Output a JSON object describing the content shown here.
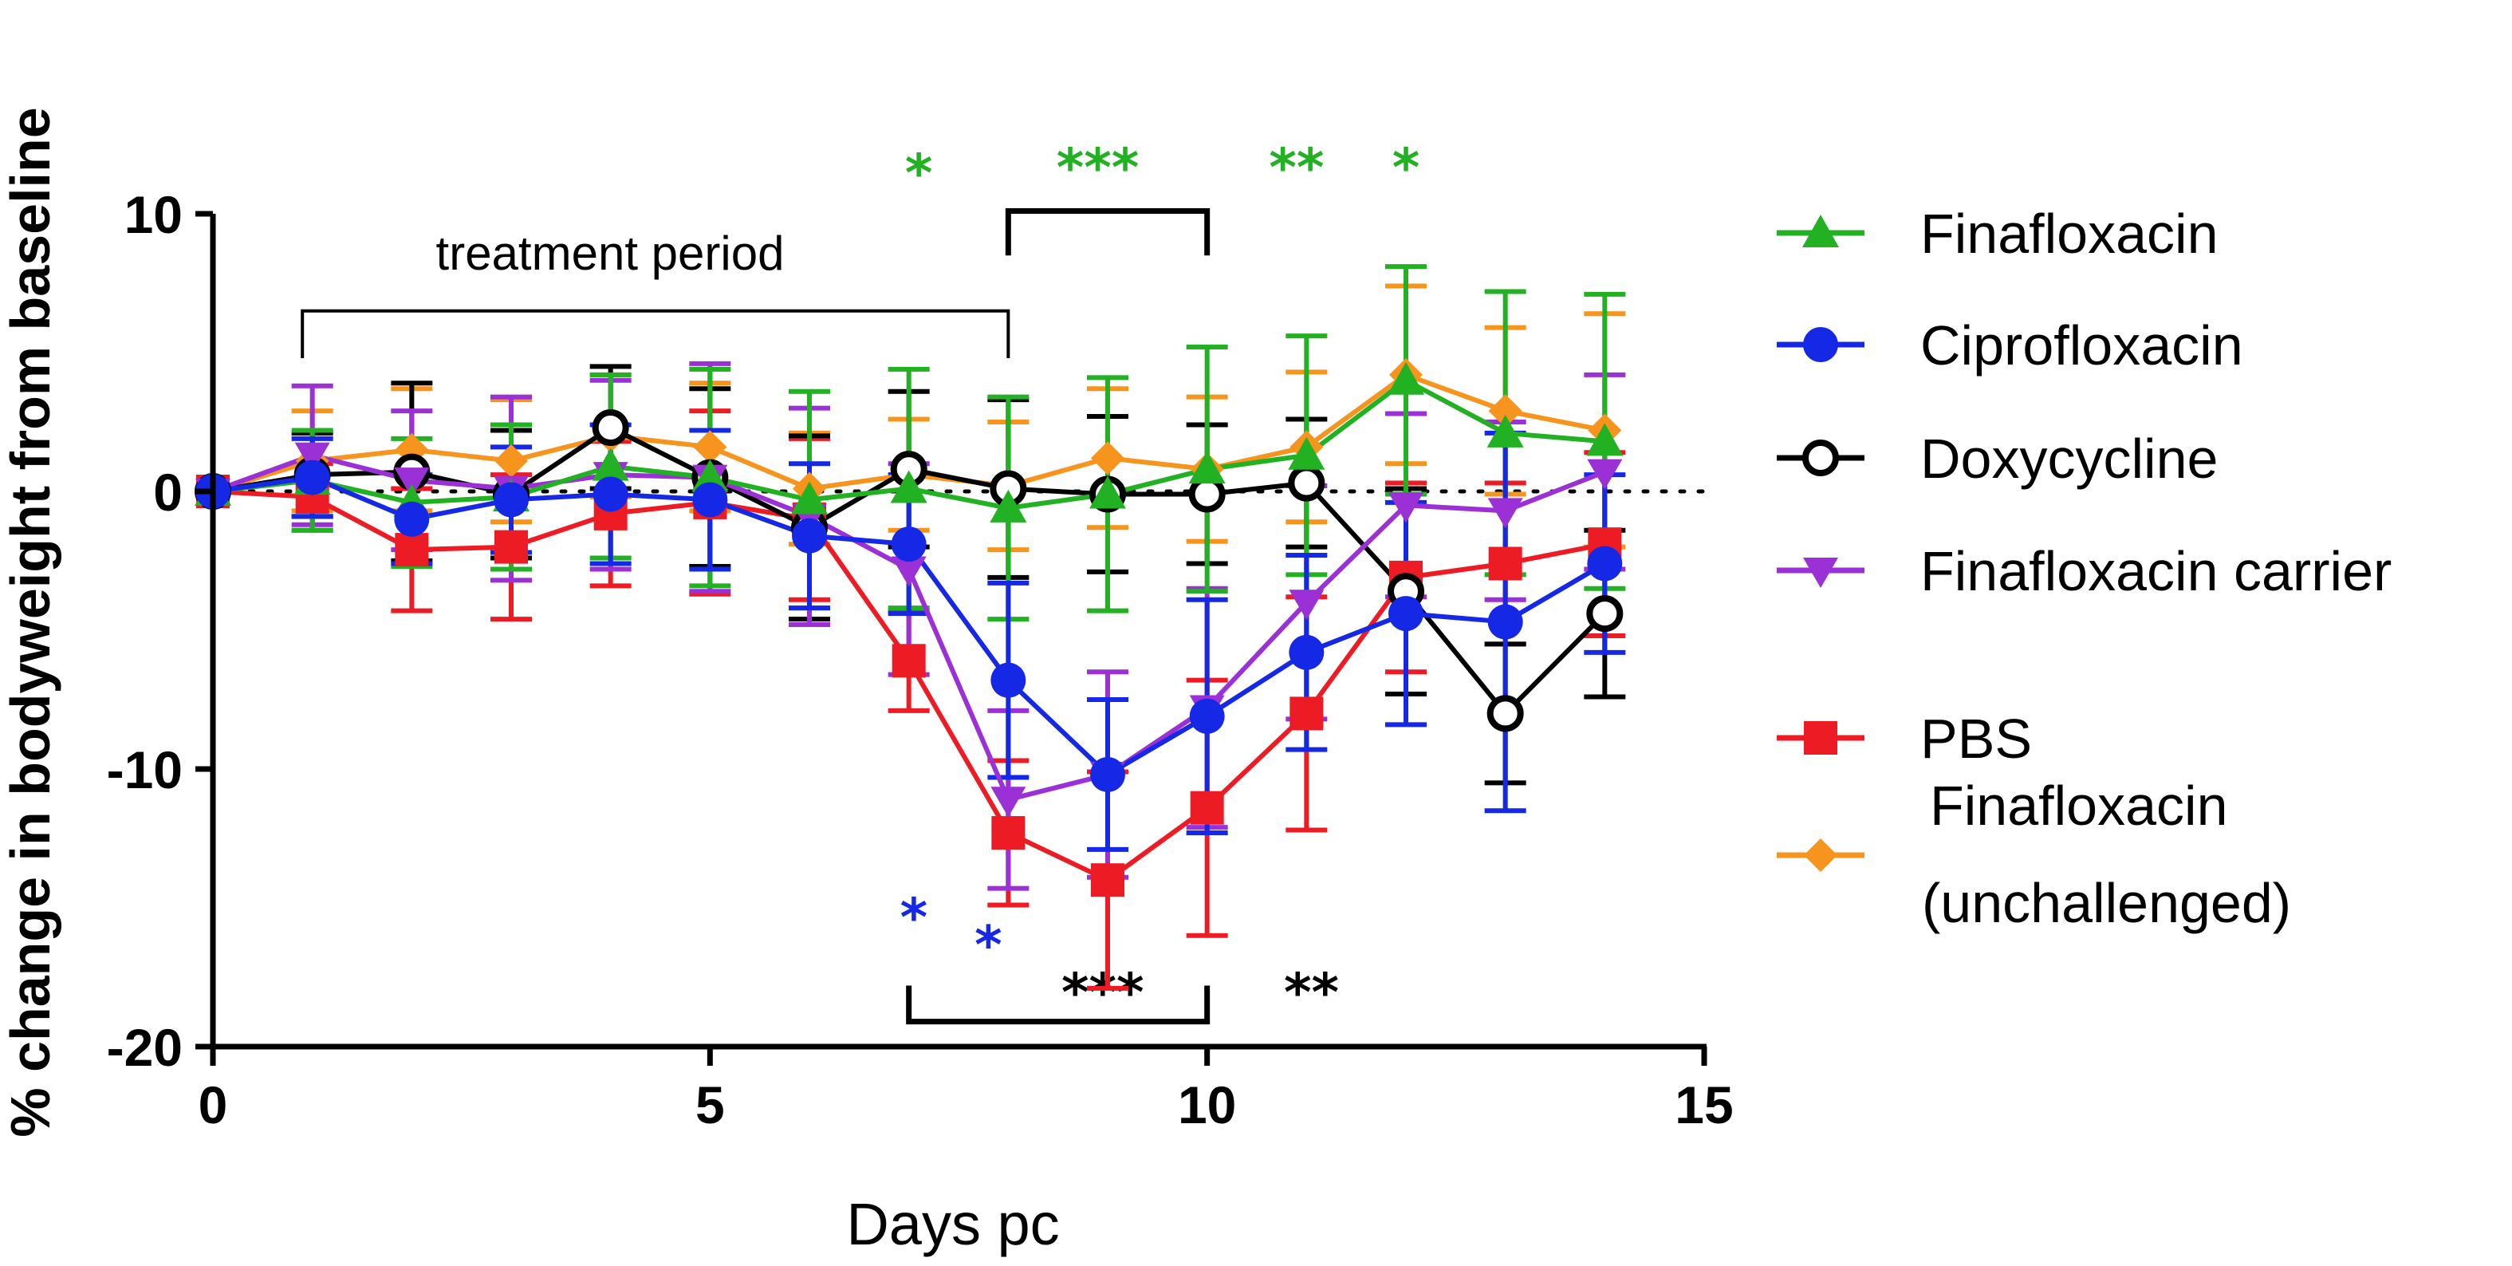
{
  "chart_data": {
    "type": "line",
    "xlabel": "Days pc",
    "ylabel": "% change in bodyweight from baseline",
    "xlim": [
      0,
      15
    ],
    "ylim": [
      -20,
      10
    ],
    "x_ticks": [
      0,
      5,
      10,
      15
    ],
    "y_ticks": [
      10,
      0,
      -10,
      -20
    ],
    "x_tick_labels": [
      "0",
      "5",
      "10",
      "15"
    ],
    "y_tick_labels": [
      "10",
      "0",
      "-10",
      "-20"
    ],
    "baseline": 0,
    "legend_position": "right",
    "x": [
      0,
      1,
      2,
      3,
      4,
      5,
      6,
      7,
      8,
      9,
      10,
      11,
      12,
      13,
      14
    ],
    "series": [
      {
        "name": "Finafloxacin (unchallenged)",
        "color": "#F7941D",
        "marker": "diamond",
        "values": [
          0,
          1.1,
          1.5,
          1.1,
          2.0,
          1.6,
          0.1,
          0.6,
          0.2,
          1.2,
          0.8,
          1.6,
          4.2,
          2.9,
          2.2
        ],
        "errors": [
          0,
          1.8,
          2.2,
          2.2,
          2.2,
          2.3,
          2.0,
          2.0,
          2.3,
          2.5,
          2.6,
          2.7,
          3.2,
          3.0,
          4.2
        ]
      },
      {
        "name": "PBS",
        "color": "#ED1C24",
        "marker": "square",
        "values": [
          0,
          -0.2,
          -2.1,
          -2.0,
          -0.8,
          -0.4,
          -1.0,
          -6.1,
          -12.3,
          -14.0,
          -11.4,
          -8.0,
          -3.1,
          -2.6,
          -1.9
        ],
        "errors": [
          0,
          1.2,
          2.2,
          2.6,
          2.6,
          3.3,
          2.9,
          1.8,
          2.6,
          3.9,
          4.6,
          4.2,
          3.4,
          2.9,
          3.3
        ]
      },
      {
        "name": "Doxycycline",
        "color": "#000000",
        "marker": "circle-open",
        "values": [
          0,
          0.6,
          0.7,
          -0.1,
          2.3,
          0.5,
          -1.3,
          0.8,
          0.1,
          -0.1,
          -0.1,
          0.3,
          -3.6,
          -8.0,
          -4.4
        ],
        "errors": [
          0,
          1.5,
          3.2,
          2.3,
          2.2,
          3.2,
          3.3,
          2.8,
          3.2,
          2.8,
          2.5,
          2.3,
          3.7,
          2.5,
          3.0
        ]
      },
      {
        "name": "Finafloxacin carrier",
        "color": "#9B30D6",
        "marker": "triangle-down",
        "values": [
          0,
          1.3,
          0.4,
          0.1,
          0.6,
          0.5,
          -0.9,
          -2.8,
          -11.1,
          -10.2,
          -7.8,
          -4.0,
          -0.5,
          -0.7,
          0.7
        ],
        "errors": [
          0,
          2.5,
          2.5,
          3.3,
          3.4,
          4.1,
          3.9,
          3.8,
          3.2,
          3.7,
          4.3,
          4.2,
          3.3,
          3.2,
          3.5
        ]
      },
      {
        "name": "Finafloxacin",
        "color": "#22B123",
        "marker": "triangle-up",
        "values": [
          0,
          0.4,
          -0.4,
          -0.2,
          0.9,
          0.5,
          -0.3,
          0.1,
          -0.6,
          -0.1,
          0.8,
          1.3,
          4.0,
          2.1,
          1.8
        ],
        "errors": [
          0,
          1.8,
          2.3,
          2.6,
          3.3,
          3.9,
          3.9,
          4.3,
          4.0,
          4.2,
          4.4,
          4.3,
          4.1,
          5.1,
          5.3
        ]
      },
      {
        "name": "Ciprofloxacin",
        "color": "#1428E6",
        "marker": "circle",
        "values": [
          0,
          0.5,
          -1.0,
          -0.3,
          -0.1,
          -0.3,
          -1.6,
          -1.9,
          -6.8,
          -10.2,
          -8.1,
          -5.8,
          -4.4,
          -4.7,
          -2.6
        ],
        "errors": [
          0,
          1.4,
          1.6,
          1.9,
          2.5,
          2.5,
          2.6,
          2.5,
          3.5,
          2.7,
          4.2,
          3.5,
          4.0,
          6.8,
          3.2
        ]
      }
    ],
    "legend": [
      {
        "series": "Finafloxacin",
        "label": "Finafloxacin"
      },
      {
        "series": "Ciprofloxacin",
        "label": "Ciprofloxacin"
      },
      {
        "series": "Doxycycline",
        "label": "Doxycycline"
      },
      {
        "series": "Finafloxacin carrier",
        "label": "Finafloxacin carrier"
      },
      {
        "series": "PBS",
        "label": "PBS"
      },
      {
        "series": "Finafloxacin (unchallenged)",
        "label": "Finafloxacin",
        "label2": "(unchallenged)"
      }
    ],
    "annotations": {
      "treatment_label": "treatment period",
      "treatment_range": [
        0.9,
        8
      ],
      "top_bracket_range": [
        8,
        10
      ],
      "bottom_bracket_range": [
        7,
        10
      ],
      "significance": [
        {
          "text": "*",
          "color": "#22B123",
          "x": 7.1,
          "y": 10.8
        },
        {
          "text": "***",
          "color": "#22B123",
          "x": 8.9,
          "y": 11.0
        },
        {
          "text": "**",
          "color": "#22B123",
          "x": 10.9,
          "y": 11.0
        },
        {
          "text": "*",
          "color": "#22B123",
          "x": 12.0,
          "y": 11.0
        },
        {
          "text": "*",
          "color": "#1428E6",
          "x": 7.05,
          "y": -16.0
        },
        {
          "text": "*",
          "color": "#1428E6",
          "x": 7.8,
          "y": -17.0
        },
        {
          "text": "***",
          "color": "#000000",
          "x": 8.95,
          "y": -18.7
        },
        {
          "text": "**",
          "color": "#000000",
          "x": 11.05,
          "y": -18.7
        }
      ]
    }
  }
}
